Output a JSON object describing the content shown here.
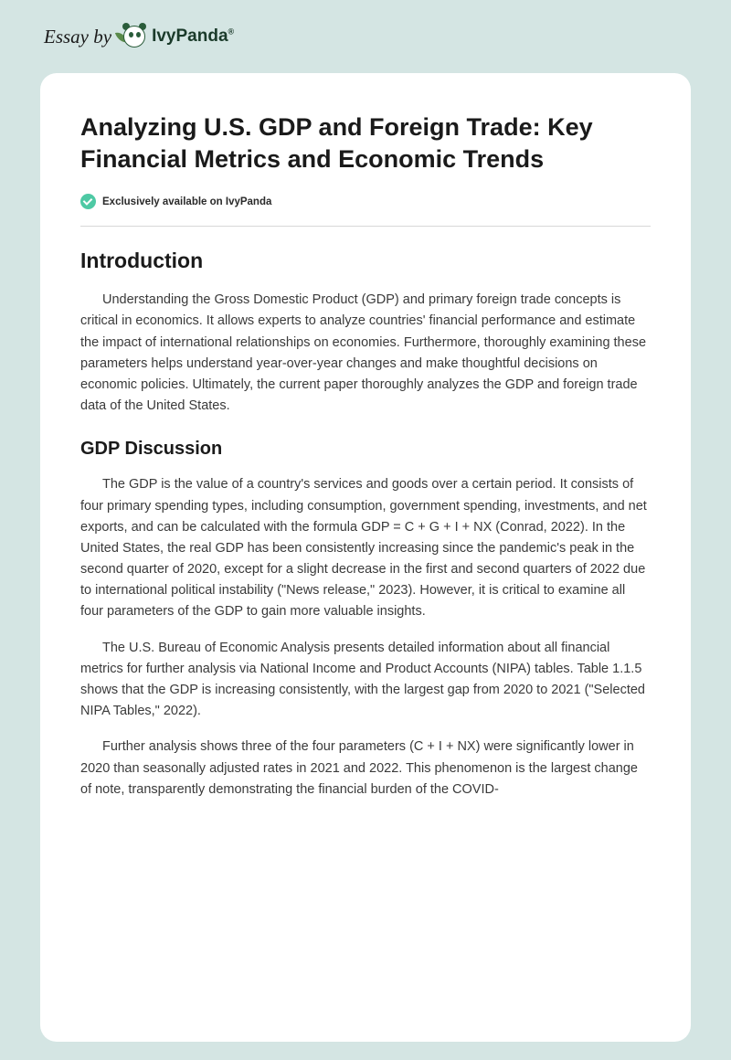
{
  "header": {
    "essay_by": "Essay by",
    "logo_text": "IvyPanda",
    "logo_reg": "®"
  },
  "card": {
    "title": "Analyzing U.S. GDP and Foreign Trade: Key Financial Metrics and Economic Trends",
    "badge": "Exclusively available on IvyPanda",
    "sections": {
      "intro_heading": "Introduction",
      "intro_p1": "Understanding the Gross Domestic Product (GDP) and primary foreign trade concepts is critical in economics. It allows experts to analyze countries' financial performance and estimate the impact of international relationships on economies. Furthermore, thoroughly examining these parameters helps understand year-over-year changes and make thoughtful decisions on economic policies. Ultimately, the current paper thoroughly analyzes the GDP and foreign trade data of the United States.",
      "gdp_heading": "GDP Discussion",
      "gdp_p1": "The GDP is the value of a country's services and goods over a certain period. It consists of four primary spending types, including consumption, government spending, investments, and net exports, and can be calculated with the formula GDP = C + G + I + NX (Conrad, 2022). In the United States, the real GDP has been consistently increasing since the pandemic's peak in the second quarter of 2020, except for a slight decrease in the first and second quarters of 2022 due to international political instability (\"News release,\" 2023). However, it is critical to examine all four parameters of the GDP to gain more valuable insights.",
      "gdp_p2": "The U.S. Bureau of Economic Analysis presents detailed information about all financial metrics for further analysis via National Income and Product Accounts (NIPA) tables. Table 1.1.5 shows that the GDP is increasing consistently, with the largest gap from 2020 to 2021 (\"Selected NIPA Tables,\" 2022).",
      "gdp_p3": "Further analysis shows three of the four parameters (C + I + NX) were significantly lower in 2020 than seasonally adjusted rates in 2021 and 2022. This phenomenon is the largest change of note, transparently demonstrating the financial burden of the COVID-"
    }
  },
  "colors": {
    "page_bg": "#d4e5e3",
    "card_bg": "#ffffff",
    "text_primary": "#1a1a1a",
    "text_body": "#3a3a3a",
    "badge_green": "#4ec9a4",
    "divider": "#d8d8d8",
    "logo_dark": "#1a3a2a"
  }
}
